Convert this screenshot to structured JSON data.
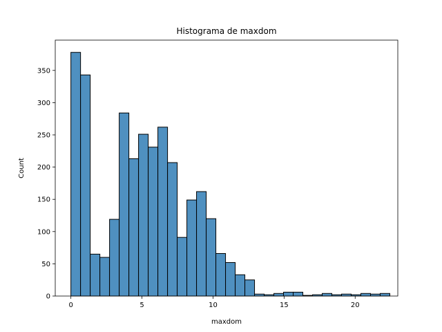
{
  "chart_data": {
    "type": "bar",
    "title": "Histograma de maxdom",
    "xlabel": "maxdom",
    "ylabel": "Count",
    "xlim": [
      -1.1,
      23.0
    ],
    "ylim": [
      0,
      397
    ],
    "xticks": [
      0,
      5,
      10,
      15,
      20
    ],
    "yticks": [
      0,
      50,
      100,
      150,
      200,
      250,
      300,
      350
    ],
    "bin_width": 0.68,
    "bin_start": 0,
    "values": [
      378,
      343,
      65,
      60,
      119,
      284,
      213,
      251,
      231,
      262,
      207,
      91,
      149,
      162,
      120,
      66,
      52,
      33,
      25,
      3,
      2,
      4,
      6,
      6,
      1,
      2,
      4,
      2,
      3,
      2,
      4,
      3,
      4
    ],
    "bar_color": "#4f90c0",
    "bar_edge_color": "#000000",
    "grid": false
  }
}
